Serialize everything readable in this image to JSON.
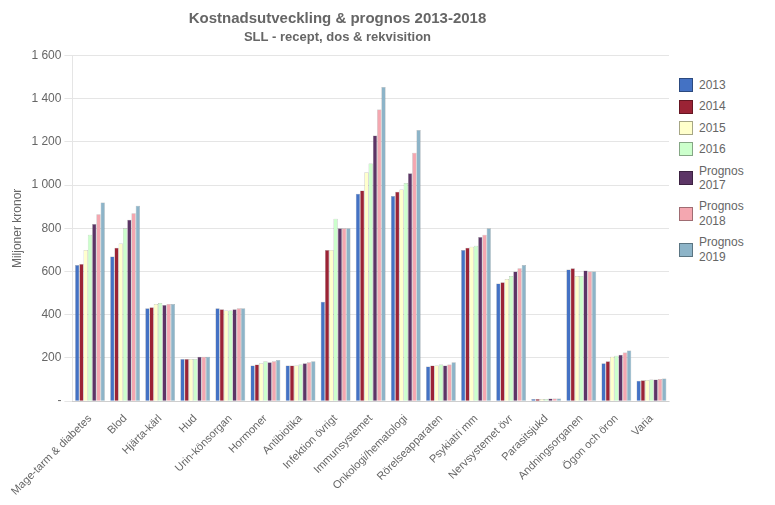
{
  "chart_data": {
    "type": "bar",
    "title": "Kostnadsutveckling & prognos 2013-2018",
    "subtitle": "SLL - recept, dos & rekvisition",
    "y_label": "Miljoner kronor",
    "categories": [
      "Mage-tarm & diabetes",
      "Blod",
      "Hjärta-kärl",
      "Hud",
      "Urin-könsorgan",
      "Hormoner",
      "Antibiotika",
      "Infektion övrigt",
      "Immunsystemet",
      "Onkologi/hematologi",
      "Rörelseapparaten",
      "Psykiatri mm",
      "Nervsystemet övr",
      "Parasitsjukd",
      "Andningsorganen",
      "Ögon och öron",
      "Varia"
    ],
    "series": [
      {
        "name": "2013",
        "color": "#4472C4",
        "values": [
          630,
          670,
          430,
          195,
          430,
          165,
          165,
          460,
          960,
          950,
          160,
          700,
          545,
          10,
          610,
          175,
          95
        ]
      },
      {
        "name": "2014",
        "color": "#9B2335",
        "values": [
          635,
          710,
          435,
          195,
          425,
          170,
          165,
          700,
          975,
          970,
          165,
          710,
          550,
          10,
          615,
          185,
          97
        ]
      },
      {
        "name": "2015",
        "color": "#FFFFCC",
        "values": [
          700,
          730,
          450,
          195,
          420,
          175,
          165,
          700,
          1060,
          980,
          165,
          715,
          565,
          10,
          580,
          205,
          98
        ]
      },
      {
        "name": "2016",
        "color": "#CCFFCC",
        "values": [
          770,
          800,
          455,
          195,
          420,
          185,
          170,
          845,
          1100,
          1010,
          170,
          720,
          580,
          10,
          580,
          210,
          100
        ]
      },
      {
        "name": "Prognos\n2017",
        "color": "#5C3566",
        "values": [
          820,
          840,
          445,
          205,
          425,
          180,
          175,
          800,
          1230,
          1055,
          165,
          760,
          600,
          12,
          605,
          215,
          100
        ]
      },
      {
        "name": "Prognos\n2018",
        "color": "#F4A7B0",
        "values": [
          865,
          870,
          450,
          205,
          430,
          185,
          180,
          800,
          1350,
          1150,
          170,
          770,
          615,
          12,
          600,
          225,
          102
        ]
      },
      {
        "name": "Prognos\n2019",
        "color": "#8DB4C8",
        "values": [
          920,
          905,
          450,
          205,
          430,
          190,
          185,
          800,
          1455,
          1255,
          180,
          800,
          630,
          12,
          600,
          235,
          105
        ]
      }
    ],
    "ylim": [
      0,
      1600
    ],
    "yticks": [
      {
        "value": 0,
        "label": "-"
      },
      200,
      400,
      600,
      800,
      {
        "value": 1000,
        "label": "1 000"
      },
      {
        "value": 1200,
        "label": "1 200"
      },
      {
        "value": 1400,
        "label": "1 400"
      },
      {
        "value": 1600,
        "label": "1 600"
      }
    ],
    "grid": true,
    "legend": "right"
  }
}
